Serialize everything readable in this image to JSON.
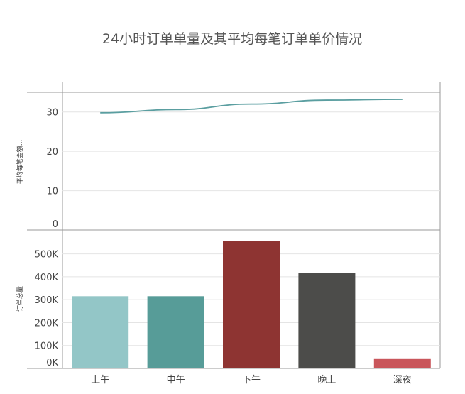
{
  "chart_data": {
    "title": "24小时订单单量及其平均每笔订单单价情况",
    "categories": [
      "上午",
      "中午",
      "下午",
      "晚上",
      "深夜"
    ],
    "top": {
      "type": "line",
      "ylabel": "平均每笔金额...",
      "yticks": [
        "0",
        "10",
        "20",
        "30"
      ],
      "ylim": [
        0,
        35
      ],
      "values": [
        29.8,
        30.6,
        32.0,
        33.0,
        33.2
      ],
      "color": "#5a9ea0"
    },
    "bottom": {
      "type": "bar",
      "ylabel": "订单总量",
      "yticks": [
        "0K",
        "100K",
        "200K",
        "300K",
        "400K",
        "500K"
      ],
      "ylim": [
        0,
        570000
      ],
      "values": [
        315000,
        315000,
        555000,
        417000,
        44000
      ],
      "colors": [
        "#93c6c7",
        "#579c98",
        "#8e3432",
        "#4c4c4a",
        "#c9565b"
      ]
    },
    "grid": true,
    "legend": "none"
  }
}
